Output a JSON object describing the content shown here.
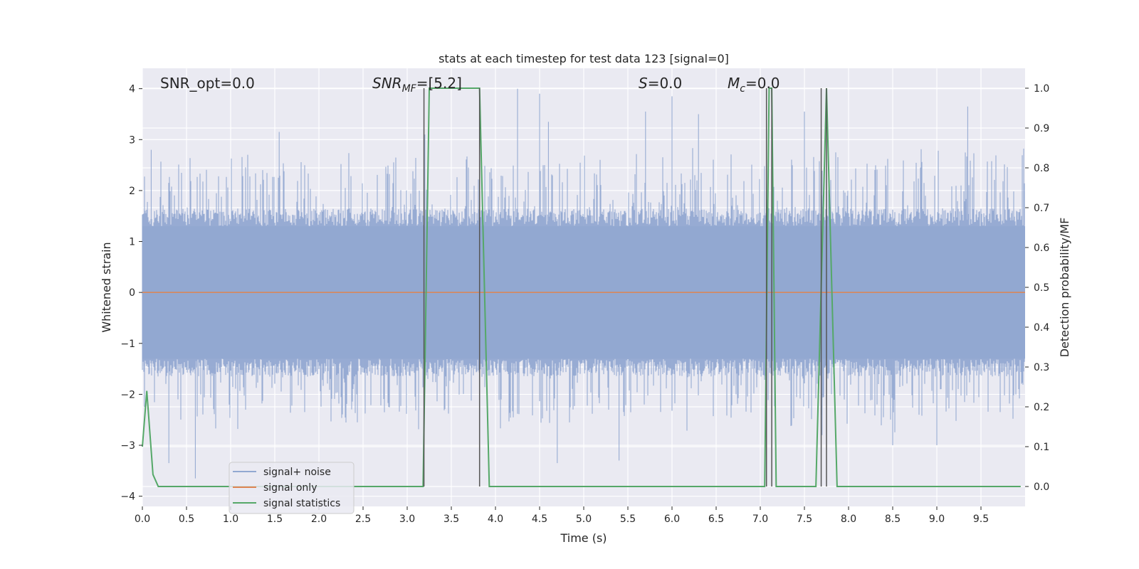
{
  "chart_data": {
    "type": "line",
    "title": "stats at each timestep for test data 123 [signal=0]",
    "xlabel": "Time (s)",
    "ylabel": "Whitened strain",
    "y2label": "Detection probability/MF",
    "xlim": [
      0.0,
      10.0
    ],
    "ylim": [
      -4.2,
      4.4
    ],
    "y2lim": [
      -0.05,
      1.05
    ],
    "x_ticks": [
      0.0,
      0.5,
      1.0,
      1.5,
      2.0,
      2.5,
      3.0,
      3.5,
      4.0,
      4.5,
      5.0,
      5.5,
      6.0,
      6.5,
      7.0,
      7.5,
      8.0,
      8.5,
      9.0,
      9.5
    ],
    "x_tick_labels": [
      "0.0",
      "0.5",
      "1.0",
      "1.5",
      "2.0",
      "2.5",
      "3.0",
      "3.5",
      "4.0",
      "4.5",
      "5.0",
      "5.5",
      "6.0",
      "6.5",
      "7.0",
      "7.5",
      "8.0",
      "8.5",
      "9.0",
      "9.5"
    ],
    "y_ticks": [
      -4,
      -3,
      -2,
      -1,
      0,
      1,
      2,
      3,
      4
    ],
    "y_tick_labels": [
      "−4",
      "−3",
      "−2",
      "−1",
      "0",
      "1",
      "2",
      "3",
      "4"
    ],
    "y2_ticks": [
      0.0,
      0.1,
      0.2,
      0.3,
      0.4,
      0.5,
      0.6,
      0.7,
      0.8,
      0.9,
      1.0
    ],
    "y2_tick_labels": [
      "0.0",
      "0.1",
      "0.2",
      "0.3",
      "0.4",
      "0.5",
      "0.6",
      "0.7",
      "0.8",
      "0.9",
      "1.0"
    ],
    "grid": true,
    "legend_position": "lower-left",
    "annotations": [
      {
        "id": "snr-opt",
        "text": "SNR_opt=0.0",
        "x": 0.2,
        "y": 4.1
      },
      {
        "id": "snr-mf",
        "text_main": "SNR",
        "text_sub": "MF",
        "text_rest": "=[5.2]",
        "x": 2.6,
        "y": 4.1
      },
      {
        "id": "s-value",
        "text_main": "S",
        "text_rest": "=0.0",
        "x": 5.6,
        "y": 4.1
      },
      {
        "id": "mc-value",
        "text_main": "M",
        "text_sub": "c",
        "text_rest": "=0.0",
        "x": 6.6,
        "y": 4.1
      }
    ],
    "series": [
      {
        "name": "signal+ noise",
        "color": "#92a8d1",
        "kind": "noise",
        "envelope_note": "dense whitened noise spanning roughly ±1.5 with spikes to about ±3.9",
        "spikes_high": [
          [
            0.1,
            2.8
          ],
          [
            1.55,
            3.15
          ],
          [
            3.2,
            3.1
          ],
          [
            4.25,
            4.0
          ],
          [
            4.5,
            3.9
          ],
          [
            4.6,
            3.35
          ],
          [
            5.7,
            3.55
          ],
          [
            6.0,
            3.85
          ],
          [
            6.3,
            3.5
          ],
          [
            7.5,
            3.55
          ],
          [
            9.35,
            3.65
          ]
        ],
        "spikes_low": [
          [
            0.6,
            -3.65
          ],
          [
            0.3,
            -3.35
          ],
          [
            4.7,
            -3.35
          ],
          [
            5.4,
            -3.3
          ],
          [
            7.7,
            -2.8
          ],
          [
            8.5,
            -3.0
          ],
          [
            9.0,
            -3.0
          ]
        ]
      },
      {
        "name": "signal only",
        "color": "#dd8452",
        "kind": "line",
        "x": [
          0.0,
          10.0
        ],
        "y": [
          0.0,
          0.0
        ]
      },
      {
        "name": "signal statistics",
        "color": "#55a868",
        "kind": "line",
        "axis": "right",
        "x": [
          0.0,
          0.05,
          0.12,
          0.18,
          3.18,
          3.25,
          3.82,
          3.93,
          7.05,
          7.1,
          7.13,
          7.18,
          7.63,
          7.75,
          7.87,
          9.95
        ],
        "y": [
          0.1,
          0.24,
          0.03,
          0.0,
          0.0,
          1.0,
          1.0,
          0.0,
          0.0,
          1.0,
          1.0,
          0.0,
          0.0,
          1.0,
          0.0,
          0.0
        ]
      }
    ],
    "vertical_markers": [
      {
        "x": 3.19,
        "color": "#555555"
      },
      {
        "x": 3.82,
        "color": "#555555"
      },
      {
        "x": 7.07,
        "color": "#555555"
      },
      {
        "x": 7.13,
        "color": "#555555"
      },
      {
        "x": 7.69,
        "color": "#555555"
      },
      {
        "x": 7.75,
        "color": "#555555"
      }
    ],
    "colors": {
      "plot_background": "#eaeaf2",
      "grid": "#ffffff",
      "text": "#262626"
    }
  }
}
